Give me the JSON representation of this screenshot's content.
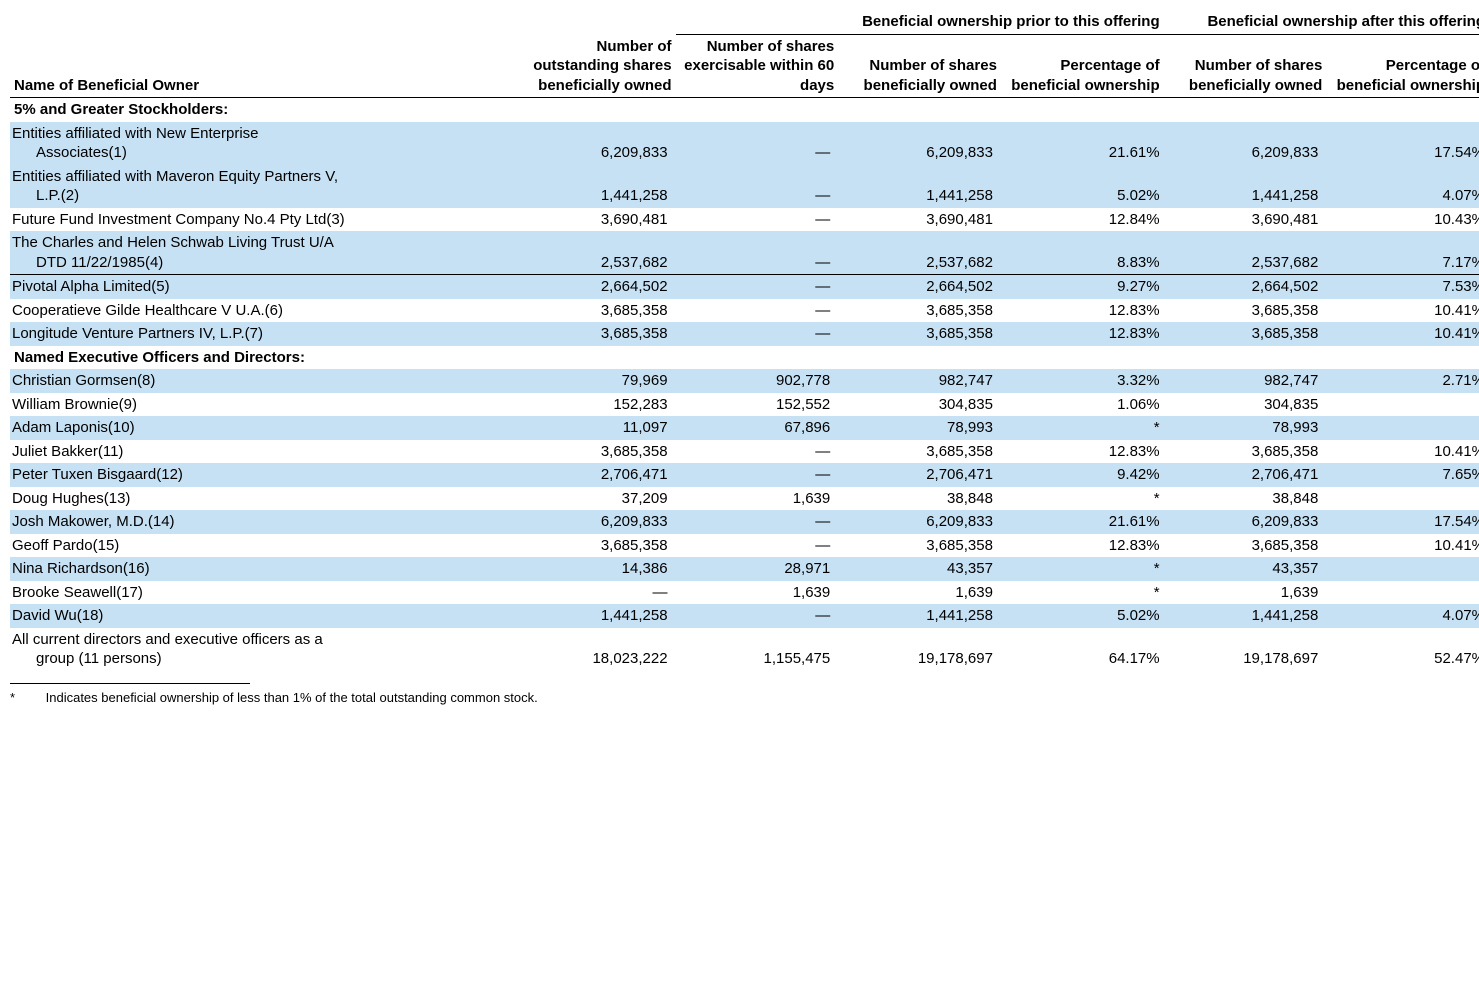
{
  "colors": {
    "stripe": "#c6e1f4",
    "text": "#000000",
    "background": "#ffffff",
    "rule": "#000000"
  },
  "typography": {
    "font_family": "Arial",
    "body_fontsize_pt": 11,
    "header_weight": "bold"
  },
  "col_widths_pct": [
    34,
    11,
    11,
    11,
    11,
    11,
    11
  ],
  "header_group_prior": "Beneficial ownership prior to this offering",
  "header_group_after": "Beneficial ownership after this offering",
  "row_label_header": "Name of Beneficial Owner",
  "col_headers": [
    "Number of outstanding shares beneficially owned",
    "Number of shares exercisable within 60 days",
    "Number of shares beneficially owned",
    "Percentage of beneficial ownership",
    "Number of shares beneficially owned",
    "Percentage of beneficial ownership"
  ],
  "section1_title": "5% and Greater Stockholders:",
  "section1_rows": [
    {
      "name_l1": "Entities affiliated with New Enterprise",
      "name_l2": "Associates(1)",
      "c1": "6,209,833",
      "c2": "—",
      "c3": "6,209,833",
      "c4": "21.61%",
      "c5": "6,209,833",
      "c6": "17.54%",
      "striped": true
    },
    {
      "name_l1": "Entities affiliated with Maveron Equity Partners V,",
      "name_l2": "L.P.(2)",
      "c1": "1,441,258",
      "c2": "—",
      "c3": "1,441,258",
      "c4": "5.02%",
      "c5": "1,441,258",
      "c6": "4.07%",
      "striped": true
    },
    {
      "name_l1": "Future Fund Investment Company No.4 Pty Ltd(3)",
      "c1": "3,690,481",
      "c2": "—",
      "c3": "3,690,481",
      "c4": "12.84%",
      "c5": "3,690,481",
      "c6": "10.43%",
      "striped": false
    },
    {
      "name_l1": "The Charles and Helen Schwab Living Trust U/A",
      "name_l2": "DTD 11/22/1985(4)",
      "c1": "2,537,682",
      "c2": "—",
      "c3": "2,537,682",
      "c4": "8.83%",
      "c5": "2,537,682",
      "c6": "7.17%",
      "striped": true
    },
    {
      "name_l1": "Pivotal Alpha Limited(5)",
      "c1": "2,664,502",
      "c2": "—",
      "c3": "2,664,502",
      "c4": "9.27%",
      "c5": "2,664,502",
      "c6": "7.53%",
      "striped": true,
      "rule": true
    },
    {
      "name_l1": "Cooperatieve Gilde Healthcare V U.A.(6)",
      "c1": "3,685,358",
      "c2": "—",
      "c3": "3,685,358",
      "c4": "12.83%",
      "c5": "3,685,358",
      "c6": "10.41%",
      "striped": false
    },
    {
      "name_l1": "Longitude Venture Partners IV, L.P.(7)",
      "c1": "3,685,358",
      "c2": "—",
      "c3": "3,685,358",
      "c4": "12.83%",
      "c5": "3,685,358",
      "c6": "10.41%",
      "striped": true
    }
  ],
  "section2_title": "Named Executive Officers and Directors:",
  "section2_rows": [
    {
      "name_l1": "Christian Gormsen(8)",
      "c1": "79,969",
      "c2": "902,778",
      "c3": "982,747",
      "c4": "3.32%",
      "c5": "982,747",
      "c6": "2.71%",
      "striped": true
    },
    {
      "name_l1": "William Brownie(9)",
      "c1": "152,283",
      "c2": "152,552",
      "c3": "304,835",
      "c4": "1.06%",
      "c5": "304,835",
      "c6": "*",
      "striped": false
    },
    {
      "name_l1": "Adam Laponis(10)",
      "c1": "11,097",
      "c2": "67,896",
      "c3": "78,993",
      "c4": "*",
      "c5": "78,993",
      "c6": "*",
      "striped": true
    },
    {
      "name_l1": "Juliet Bakker(11)",
      "c1": "3,685,358",
      "c2": "—",
      "c3": "3,685,358",
      "c4": "12.83%",
      "c5": "3,685,358",
      "c6": "10.41%",
      "striped": false
    },
    {
      "name_l1": "Peter Tuxen Bisgaard(12)",
      "c1": "2,706,471",
      "c2": "—",
      "c3": "2,706,471",
      "c4": "9.42%",
      "c5": "2,706,471",
      "c6": "7.65%",
      "striped": true
    },
    {
      "name_l1": "Doug Hughes(13)",
      "c1": "37,209",
      "c2": "1,639",
      "c3": "38,848",
      "c4": "*",
      "c5": "38,848",
      "c6": "*",
      "striped": false
    },
    {
      "name_l1": "Josh Makower, M.D.(14)",
      "c1": "6,209,833",
      "c2": "—",
      "c3": "6,209,833",
      "c4": "21.61%",
      "c5": "6,209,833",
      "c6": "17.54%",
      "striped": true
    },
    {
      "name_l1": "Geoff Pardo(15)",
      "c1": "3,685,358",
      "c2": "—",
      "c3": "3,685,358",
      "c4": "12.83%",
      "c5": "3,685,358",
      "c6": "10.41%",
      "striped": false
    },
    {
      "name_l1": "Nina Richardson(16)",
      "c1": "14,386",
      "c2": "28,971",
      "c3": "43,357",
      "c4": "*",
      "c5": "43,357",
      "c6": "*",
      "striped": true
    },
    {
      "name_l1": "Brooke Seawell(17)",
      "c1": "—",
      "c2": "1,639",
      "c3": "1,639",
      "c4": "*",
      "c5": "1,639",
      "c6": "*",
      "striped": false
    },
    {
      "name_l1": "David Wu(18)",
      "c1": "1,441,258",
      "c2": "—",
      "c3": "1,441,258",
      "c4": "5.02%",
      "c5": "1,441,258",
      "c6": "4.07%",
      "striped": true
    },
    {
      "name_l1": "All current directors and executive officers as a",
      "name_l2": "group (11 persons)",
      "c1": "18,023,222",
      "c2": "1,155,475",
      "c3": "19,178,697",
      "c4": "64.17%",
      "c5": "19,178,697",
      "c6": "52.47%",
      "striped": false
    }
  ],
  "footnote_star": "*",
  "footnote_text": "Indicates beneficial ownership of less than 1% of the total outstanding common stock."
}
